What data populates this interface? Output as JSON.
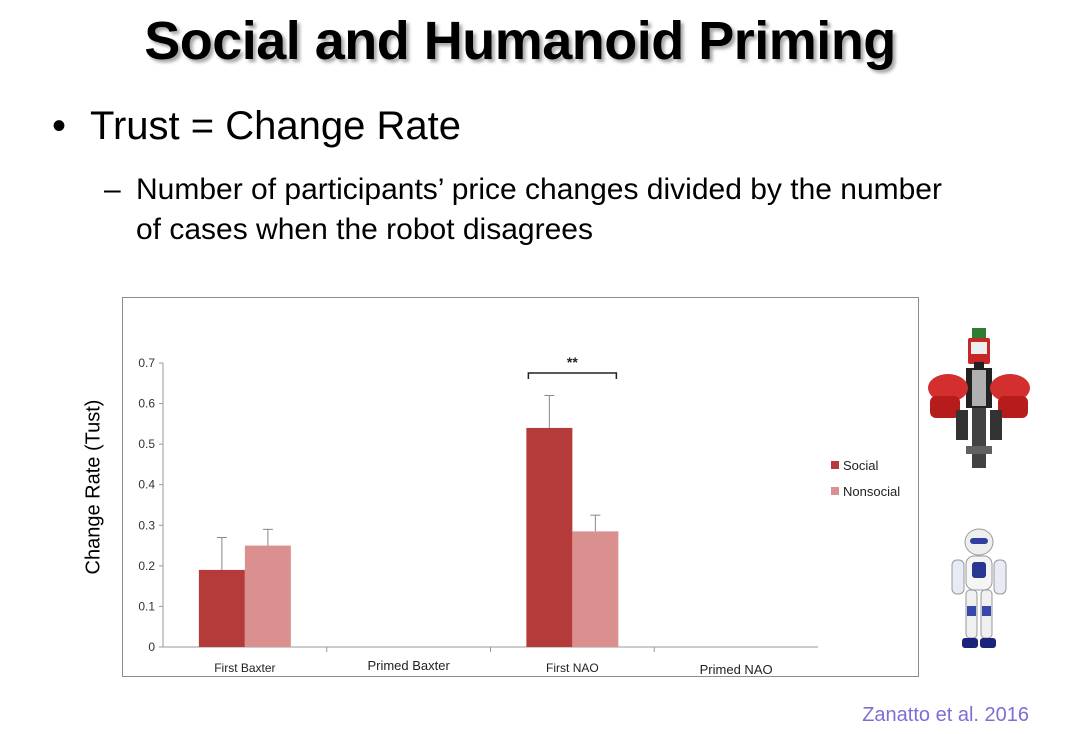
{
  "slide": {
    "title": "Social and Humanoid Priming",
    "bullet1": "Trust = Change Rate",
    "bullet2": "Number of participants’ price changes divided by the number of cases when the robot disagrees",
    "bullet_symbol": "•",
    "dash_symbol": "–",
    "citation": "Zanatto et al. 2016"
  },
  "chart_data": {
    "type": "bar",
    "ylabel": "Change Rate (Tust)",
    "ylim": [
      0,
      0.7
    ],
    "yticks": [
      "0",
      "0.1",
      "0.2",
      "0.3",
      "0.4",
      "0.5",
      "0.6",
      "0.7"
    ],
    "categories": [
      "First Baxter",
      "Primed Baxter",
      "First NAO",
      "Primed NAO"
    ],
    "series": [
      {
        "name": "Social",
        "color": "#b53b3b",
        "values": [
          0.19,
          null,
          0.54,
          null
        ],
        "error": [
          0.08,
          null,
          0.08,
          null
        ]
      },
      {
        "name": "Nonsocial",
        "color": "#db9090",
        "values": [
          0.25,
          null,
          0.285,
          null
        ],
        "error": [
          0.04,
          null,
          0.04,
          null
        ]
      }
    ],
    "annotation": "**",
    "legend_position": "right",
    "grid": false
  },
  "icons": {
    "robot_top": "baxter-robot-icon",
    "robot_bottom": "nao-robot-icon"
  }
}
